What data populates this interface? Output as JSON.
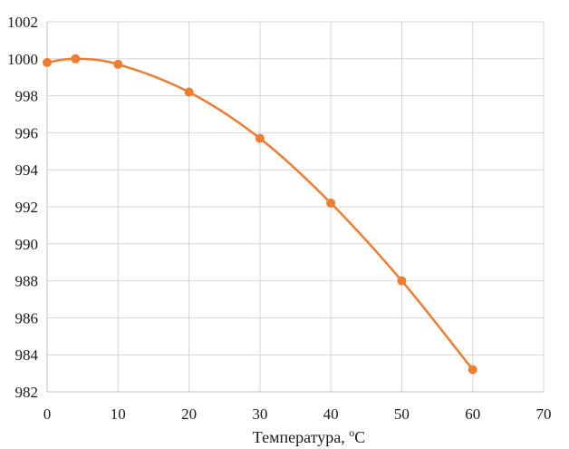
{
  "chart_data": {
    "type": "scatter",
    "title": "",
    "xlabel": "Температура, ",
    "xlabel_sup": "o",
    "xlabel_tail": "C",
    "ylabel": "",
    "x_ticks": [
      "0",
      "10",
      "20",
      "30",
      "40",
      "50",
      "60",
      "70"
    ],
    "y_ticks": [
      "982",
      "984",
      "986",
      "988",
      "990",
      "992",
      "994",
      "996",
      "998",
      "1000",
      "1002"
    ],
    "xlim": [
      0,
      70
    ],
    "ylim": [
      982,
      1002
    ],
    "grid": true,
    "legend": "none",
    "smooth_line": true,
    "series": [
      {
        "color": "#ED7D31",
        "points": [
          {
            "x": 0,
            "y": 999.8
          },
          {
            "x": 4,
            "y": 1000.0
          },
          {
            "x": 10,
            "y": 999.7
          },
          {
            "x": 20,
            "y": 998.2
          },
          {
            "x": 30,
            "y": 995.7
          },
          {
            "x": 40,
            "y": 992.2
          },
          {
            "x": 50,
            "y": 988.0
          },
          {
            "x": 60,
            "y": 983.2
          }
        ]
      }
    ]
  }
}
